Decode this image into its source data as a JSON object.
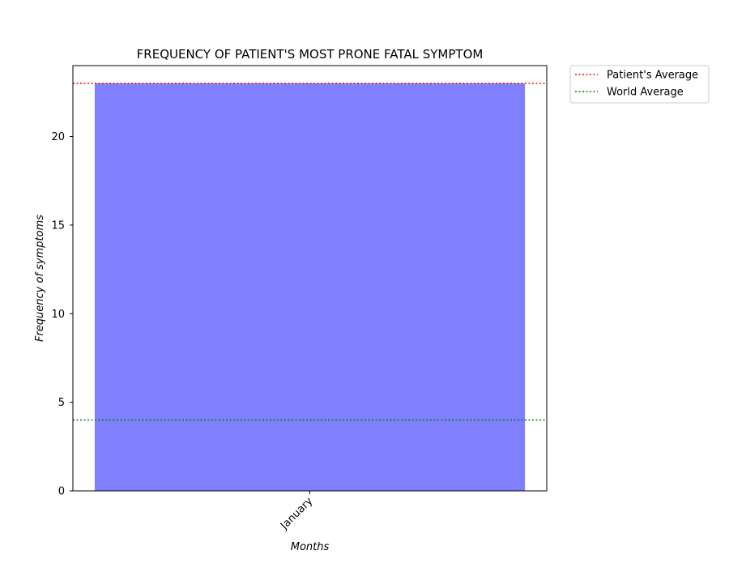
{
  "chart_data": {
    "type": "bar",
    "title": "FREQUENCY OF PATIENT'S MOST PRONE FATAL SYMPTOM",
    "xlabel": "Months",
    "ylabel": "Frequency of symptoms",
    "categories": [
      "January"
    ],
    "values": [
      23
    ],
    "ylim": [
      0,
      24
    ],
    "yticks": [
      0,
      5,
      10,
      15,
      20
    ],
    "bar_color": "#8080ff",
    "grid": false,
    "reference_lines": [
      {
        "name": "Patient's Average",
        "value": 23,
        "color": "#ff0000",
        "style": "dotted"
      },
      {
        "name": "World Average",
        "value": 4,
        "color": "#008000",
        "style": "dotted"
      }
    ],
    "legend": {
      "placement": "outside-top-right",
      "entries": [
        "Patient's Average",
        "World Average"
      ]
    }
  }
}
